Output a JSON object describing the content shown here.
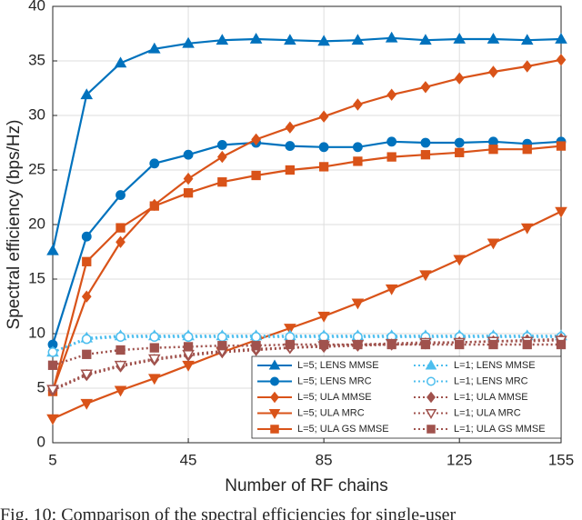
{
  "chart_data": {
    "type": "line",
    "xlabel": "Number of RF chains",
    "ylabel": "Spectral efficiency (bps/Hz)",
    "caption": "Fig. 10: Comparison of the spectral efficiencies for single-user",
    "x": [
      5,
      15,
      25,
      35,
      45,
      55,
      65,
      75,
      85,
      95,
      105,
      115,
      125,
      135,
      145,
      155
    ],
    "xlim": [
      5,
      155
    ],
    "xticks": [
      5,
      45,
      85,
      125,
      155
    ],
    "ylim": [
      0,
      40
    ],
    "yticks": [
      0,
      5,
      10,
      15,
      20,
      25,
      30,
      35,
      40
    ],
    "grid": true,
    "legend_position": "lower right",
    "series": [
      {
        "name": "L=5; LENS MMSE",
        "color": "#0072bd",
        "marker": "triangle-up",
        "linestyle": "solid",
        "values": [
          17.6,
          31.9,
          34.8,
          36.1,
          36.6,
          36.9,
          37.0,
          36.9,
          36.8,
          36.9,
          37.1,
          36.9,
          37.0,
          37.0,
          36.9,
          37.0
        ]
      },
      {
        "name": "L=5; LENS MRC",
        "color": "#0072bd",
        "marker": "circle",
        "linestyle": "solid",
        "values": [
          9.0,
          18.9,
          22.7,
          25.6,
          26.4,
          27.3,
          27.5,
          27.2,
          27.1,
          27.1,
          27.6,
          27.5,
          27.5,
          27.6,
          27.4,
          27.6
        ]
      },
      {
        "name": "L=5; ULA MMSE",
        "color": "#d95319",
        "marker": "diamond",
        "linestyle": "solid",
        "values": [
          4.8,
          13.4,
          18.4,
          21.8,
          24.2,
          26.2,
          27.8,
          28.9,
          29.9,
          31.0,
          31.9,
          32.6,
          33.4,
          34.0,
          34.5,
          35.1
        ]
      },
      {
        "name": "L=5; ULA MRC",
        "color": "#d95319",
        "marker": "triangle-down",
        "linestyle": "solid",
        "values": [
          2.2,
          3.6,
          4.8,
          5.9,
          7.1,
          8.3,
          9.4,
          10.5,
          11.6,
          12.8,
          14.1,
          15.4,
          16.8,
          18.3,
          19.7,
          21.2
        ]
      },
      {
        "name": "L=5; ULA GS MMSE",
        "color": "#d95319",
        "marker": "square",
        "linestyle": "solid",
        "values": [
          4.7,
          16.6,
          19.7,
          21.7,
          22.9,
          23.9,
          24.5,
          25.0,
          25.3,
          25.8,
          26.2,
          26.4,
          26.6,
          26.9,
          26.9,
          27.2
        ]
      },
      {
        "name": "L=1; LENS MMSE",
        "color": "#4dbeee",
        "marker": "triangle-up",
        "linestyle": "dotted",
        "values": [
          8.3,
          9.6,
          9.8,
          9.8,
          9.8,
          9.8,
          9.8,
          9.8,
          9.8,
          9.8,
          9.8,
          9.8,
          9.8,
          9.8,
          9.8,
          9.8
        ]
      },
      {
        "name": "L=1; LENS MRC",
        "color": "#4dbeee",
        "marker": "circle",
        "linestyle": "dotted",
        "values": [
          8.3,
          9.5,
          9.7,
          9.7,
          9.7,
          9.7,
          9.7,
          9.7,
          9.7,
          9.7,
          9.7,
          9.7,
          9.7,
          9.7,
          9.7,
          9.7
        ]
      },
      {
        "name": "L=1; ULA MMSE",
        "color": "#a0524d",
        "marker": "diamond",
        "linestyle": "dotted",
        "values": [
          4.8,
          6.2,
          7.0,
          7.6,
          8.0,
          8.3,
          8.5,
          8.7,
          8.8,
          8.9,
          9.0,
          9.1,
          9.2,
          9.3,
          9.4,
          9.5
        ]
      },
      {
        "name": "L=1; ULA MRC",
        "color": "#a0524d",
        "marker": "triangle-down",
        "linestyle": "dotted",
        "values": [
          4.9,
          6.3,
          7.1,
          7.7,
          8.1,
          8.4,
          8.6,
          8.7,
          8.9,
          9.0,
          9.1,
          9.2,
          9.2,
          9.3,
          9.3,
          9.4
        ]
      },
      {
        "name": "L=1; ULA GS MMSE",
        "color": "#a0524d",
        "marker": "square",
        "linestyle": "dotted",
        "values": [
          7.1,
          8.1,
          8.5,
          8.7,
          8.8,
          8.9,
          8.9,
          9.0,
          9.0,
          9.0,
          9.0,
          9.0,
          9.0,
          9.0,
          9.0,
          9.0
        ]
      }
    ]
  }
}
